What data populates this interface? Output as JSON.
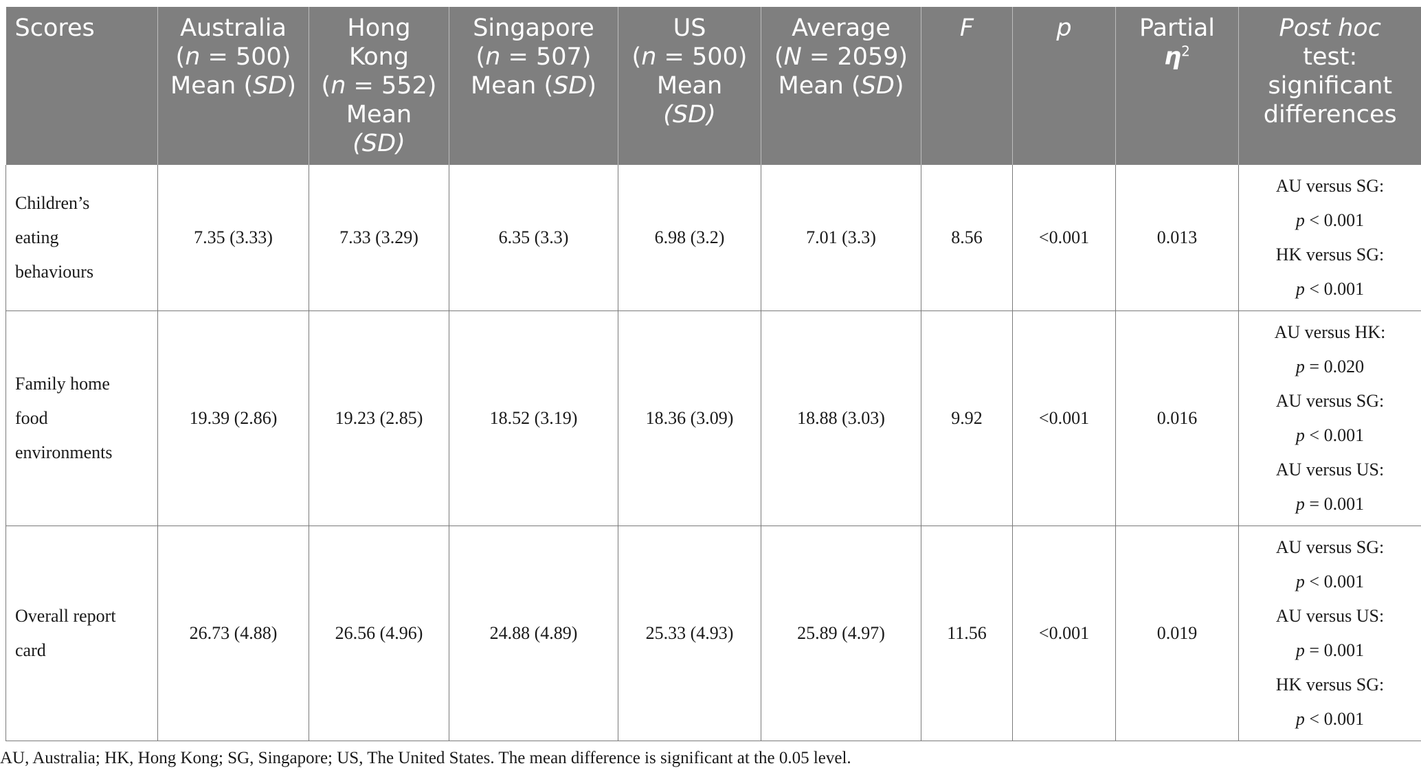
{
  "header": {
    "scores": "Scores",
    "australia": [
      "Australia",
      "(n = 500)",
      "Mean (SD)"
    ],
    "hongkong": [
      "Hong",
      "Kong",
      "(n = 552)",
      "Mean",
      "(SD)"
    ],
    "singapore": [
      "Singapore",
      "(n = 507)",
      "Mean (SD)"
    ],
    "us": [
      "US",
      "(n = 500)",
      "Mean",
      "(SD)"
    ],
    "average": [
      "Average",
      "(N = 2059)",
      "Mean (SD)"
    ],
    "f": "F",
    "p": "p",
    "eta": [
      "Partial",
      "η",
      "2"
    ],
    "posthoc": [
      "Post hoc",
      "test:",
      "significant",
      "differences"
    ]
  },
  "rows": [
    {
      "label": [
        "Children’s",
        "eating",
        "behaviours"
      ],
      "au": "7.35 (3.33)",
      "hk": "7.33 (3.29)",
      "sg": "6.35 (3.3)",
      "us": "6.98 (3.2)",
      "avg": "7.01 (3.3)",
      "f": "8.56",
      "p": "<0.001",
      "eta": "0.013",
      "posthoc": [
        "AU versus SG:",
        "p < 0.001",
        "HK versus SG:",
        "p < 0.001"
      ]
    },
    {
      "label": [
        "Family home",
        "food",
        "environments"
      ],
      "au": "19.39 (2.86)",
      "hk": "19.23 (2.85)",
      "sg": "18.52 (3.19)",
      "us": "18.36 (3.09)",
      "avg": "18.88 (3.03)",
      "f": "9.92",
      "p": "<0.001",
      "eta": "0.016",
      "posthoc": [
        "AU versus HK:",
        "p = 0.020",
        "AU versus SG:",
        "p < 0.001",
        "AU versus US:",
        "p = 0.001"
      ]
    },
    {
      "label": [
        "Overall report",
        "card"
      ],
      "au": "26.73 (4.88)",
      "hk": "26.56 (4.96)",
      "sg": "24.88 (4.89)",
      "us": "25.33 (4.93)",
      "avg": "25.89 (4.97)",
      "f": "11.56",
      "p": "<0.001",
      "eta": "0.019",
      "posthoc": [
        "AU versus SG:",
        "p < 0.001",
        "AU versus US:",
        "p = 0.001",
        "HK versus SG:",
        "p < 0.001"
      ]
    }
  ],
  "footnote": "AU, Australia; HK, Hong Kong; SG, Singapore; US, The United States. The mean difference is significant at the 0.05 level."
}
